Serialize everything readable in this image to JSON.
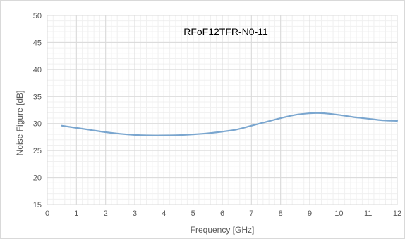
{
  "chart_data": {
    "type": "line",
    "title": "RFoF12TFR-N0-11",
    "xlabel": "Frequency [GHz]",
    "ylabel": "Noise Figure [dB]",
    "xlim": [
      0,
      12
    ],
    "ylim": [
      15,
      50
    ],
    "x_ticks": [
      0,
      1,
      2,
      3,
      4,
      5,
      6,
      7,
      8,
      9,
      10,
      11,
      12
    ],
    "y_ticks": [
      15,
      20,
      25,
      30,
      35,
      40,
      45,
      50
    ],
    "x_minor_step": 0.2,
    "y_minor_step": 1,
    "grid": true,
    "series": [
      {
        "color": "#7aa6cf",
        "x": [
          0.5,
          1,
          1.5,
          2,
          2.5,
          3,
          3.5,
          4,
          4.5,
          5,
          5.5,
          6,
          6.5,
          7,
          7.5,
          8,
          8.5,
          9,
          9.25,
          9.5,
          10,
          10.5,
          11,
          11.5,
          12
        ],
        "y": [
          29.6,
          29.2,
          28.8,
          28.4,
          28.1,
          27.9,
          27.8,
          27.8,
          27.85,
          28.0,
          28.2,
          28.5,
          28.9,
          29.6,
          30.3,
          31.0,
          31.6,
          31.9,
          31.95,
          31.9,
          31.6,
          31.2,
          30.9,
          30.6,
          30.5
        ]
      }
    ]
  }
}
